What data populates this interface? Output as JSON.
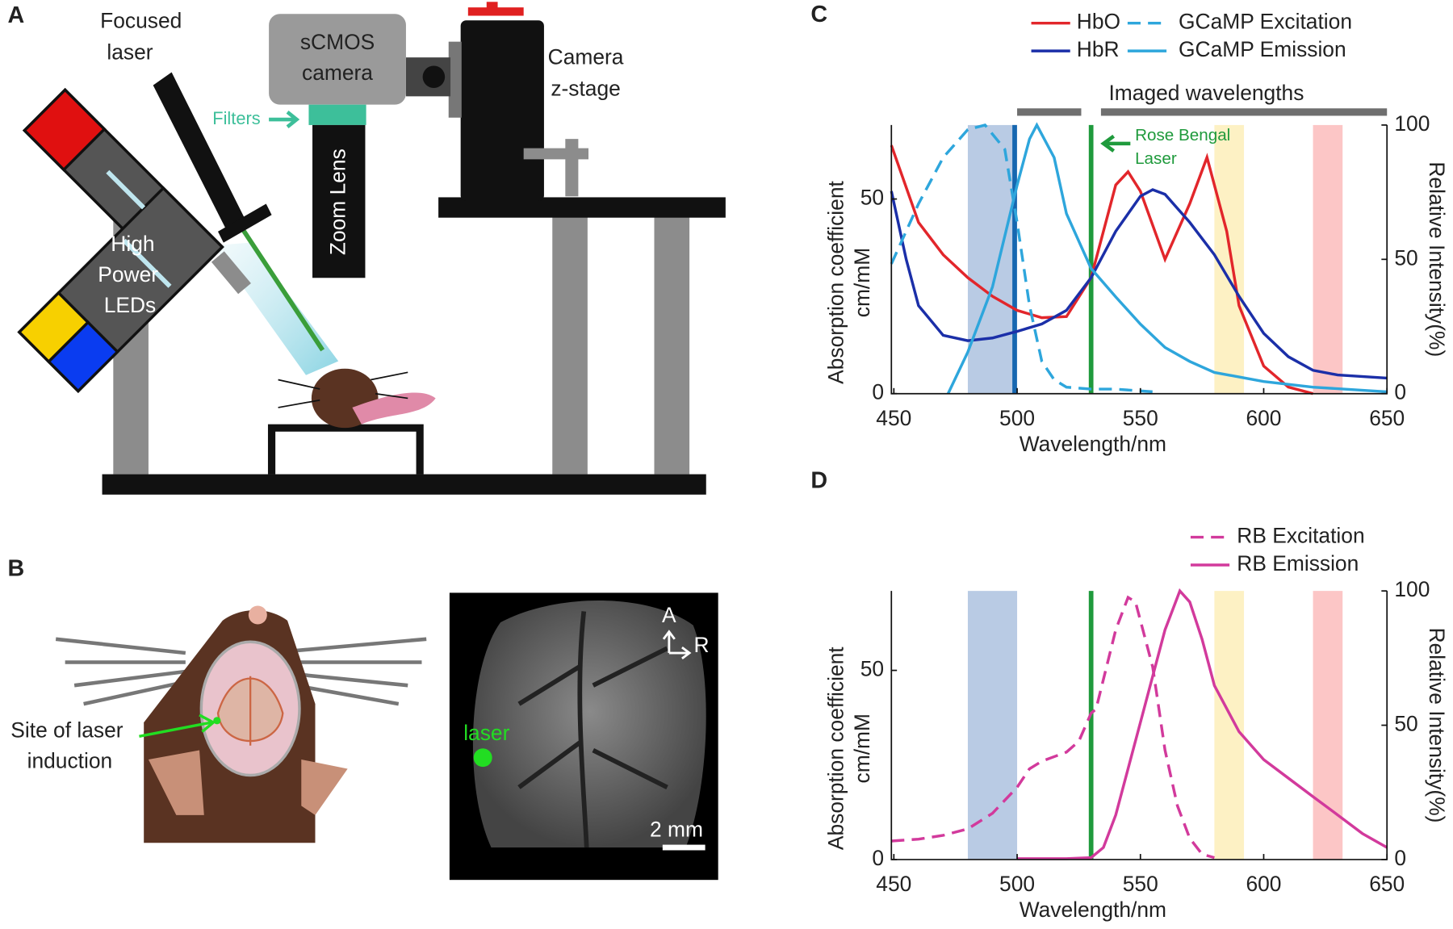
{
  "panels": {
    "a": {
      "label": "A",
      "focused_laser": [
        "Focused",
        "laser"
      ],
      "camera": [
        "sCMOS",
        "camera"
      ],
      "zstage": [
        "Camera",
        "z-stage"
      ],
      "filters": "Filters",
      "zoom": "Zoom Lens",
      "leds": [
        "High",
        "Power",
        "LEDs"
      ]
    },
    "b": {
      "label": "B",
      "site": [
        "Site of laser",
        "induction"
      ],
      "laser": "laser",
      "dir_a": "A",
      "dir_r": "R",
      "scale": "2 mm"
    }
  },
  "chart_data": [
    {
      "type": "line",
      "panel_label": "C",
      "xlabel": "Wavelength/nm",
      "ylabel": [
        "Absorption coefficient",
        "cm/mM"
      ],
      "y2label": "Relative Intensity(%)",
      "xlim": [
        449,
        650
      ],
      "xticks": [
        450,
        500,
        550,
        600,
        650
      ],
      "ylim": [
        0,
        69
      ],
      "yticks": [
        0,
        50
      ],
      "y2lim": [
        0,
        100
      ],
      "y2ticks": [
        0,
        50,
        100
      ],
      "bands": [
        {
          "range": [
            480,
            500
          ],
          "color": "#b9cbe4"
        },
        {
          "range": [
            580,
            592
          ],
          "color": "#fdf1c4"
        },
        {
          "range": [
            620,
            632
          ],
          "color": "#fcc6c6"
        }
      ],
      "vlines": [
        {
          "x": 499,
          "color": "#1667b0"
        },
        {
          "x": 530,
          "color": "#1f9a3c"
        }
      ],
      "imaged": {
        "label": "Imaged wavelengths",
        "ranges": [
          [
            500,
            526
          ],
          [
            534,
            650
          ]
        ],
        "color": "#6f6f6f"
      },
      "annotation": [
        "Rose Bengal",
        "Laser"
      ],
      "annotation_color": "#1f9a3c",
      "series": [
        {
          "name": "HbO",
          "color": "#e2262b",
          "axis": "y",
          "x": [
            449,
            460,
            470,
            480,
            490,
            500,
            510,
            520,
            530,
            540,
            545,
            550,
            560,
            570,
            577,
            585,
            590,
            600,
            610,
            620
          ],
          "values": [
            63.8,
            44,
            35.7,
            29.8,
            25,
            21.4,
            19.5,
            19.8,
            29.8,
            53.6,
            57,
            52,
            34.5,
            48.8,
            60.7,
            41.7,
            22.6,
            7.1,
            1.7,
            0
          ]
        },
        {
          "name": "HbR",
          "color": "#1b2fa8",
          "axis": "y",
          "x": [
            449,
            455,
            460,
            470,
            480,
            490,
            500,
            510,
            520,
            530,
            540,
            550,
            555,
            560,
            570,
            580,
            590,
            600,
            610,
            620,
            630,
            650
          ],
          "values": [
            52,
            34.5,
            22.6,
            15,
            13.6,
            14.3,
            16,
            17.9,
            21.4,
            29.8,
            41.7,
            50.7,
            52.4,
            51.2,
            44,
            35.7,
            25,
            15.5,
            9.5,
            6,
            4.8,
            4
          ]
        },
        {
          "name": "GCaMP Excitation",
          "color": "#2ea6dc",
          "dashed": true,
          "axis": "y2",
          "x": [
            449,
            460,
            470,
            480,
            487,
            495,
            500,
            505,
            510,
            515,
            520,
            530,
            540,
            555
          ],
          "values": [
            48.3,
            70.7,
            87.9,
            98.3,
            100,
            91,
            63.8,
            32.8,
            12,
            5.2,
            2.4,
            1.7,
            1.7,
            0.7
          ]
        },
        {
          "name": "GCaMP Emission",
          "color": "#2ea6dc",
          "axis": "y2",
          "x": [
            472,
            480,
            490,
            500,
            505,
            508,
            515,
            520,
            530,
            540,
            550,
            560,
            570,
            580,
            600,
            620,
            650
          ],
          "values": [
            0,
            15.5,
            39.7,
            77.6,
            94.8,
            100,
            87.9,
            67,
            46.6,
            36,
            25.9,
            17.2,
            12,
            7.9,
            4.5,
            2.4,
            0.7
          ]
        }
      ]
    },
    {
      "type": "line",
      "panel_label": "D",
      "xlabel": "Wavelength/nm",
      "ylabel": [
        "Absorption coefficient",
        "cm/mM"
      ],
      "y2label": "Relative Intensity(%)",
      "xlim": [
        449,
        650
      ],
      "xticks": [
        450,
        500,
        550,
        600,
        650
      ],
      "ylim": [
        0,
        71
      ],
      "yticks": [
        0,
        50
      ],
      "y2lim": [
        0,
        100
      ],
      "y2ticks": [
        0,
        50,
        100
      ],
      "bands": [
        {
          "range": [
            480,
            500
          ],
          "color": "#b9cbe4"
        },
        {
          "range": [
            580,
            592
          ],
          "color": "#fdf1c4"
        },
        {
          "range": [
            620,
            632
          ],
          "color": "#fcc6c6"
        }
      ],
      "vlines": [
        {
          "x": 530,
          "color": "#1f9a3c"
        }
      ],
      "series": [
        {
          "name": "RB Excitation",
          "color": "#d23a9c",
          "dashed": true,
          "axis": "y2",
          "x": [
            449,
            460,
            470,
            480,
            490,
            500,
            505,
            510,
            520,
            525,
            530,
            532,
            540,
            545,
            548,
            555,
            560,
            565,
            570,
            575,
            580
          ],
          "values": [
            6.9,
            7.6,
            9,
            11.4,
            17.2,
            26.9,
            33.8,
            36.6,
            40,
            44,
            54.5,
            56,
            85.5,
            97.6,
            95.9,
            71.7,
            40.7,
            20,
            7.9,
            2,
            0.7
          ]
        },
        {
          "name": "RB Emission",
          "color": "#d23a9c",
          "axis": "y2",
          "x": [
            500,
            520,
            530,
            535,
            540,
            550,
            560,
            566,
            570,
            575,
            580,
            590,
            600,
            610,
            620,
            630,
            640,
            650
          ],
          "values": [
            0.3,
            0.3,
            0.7,
            4.5,
            16.6,
            51,
            85.5,
            100,
            95.9,
            82,
            64.8,
            47.6,
            37.2,
            30.3,
            23.4,
            16.6,
            9.7,
            4.5
          ]
        }
      ]
    }
  ]
}
